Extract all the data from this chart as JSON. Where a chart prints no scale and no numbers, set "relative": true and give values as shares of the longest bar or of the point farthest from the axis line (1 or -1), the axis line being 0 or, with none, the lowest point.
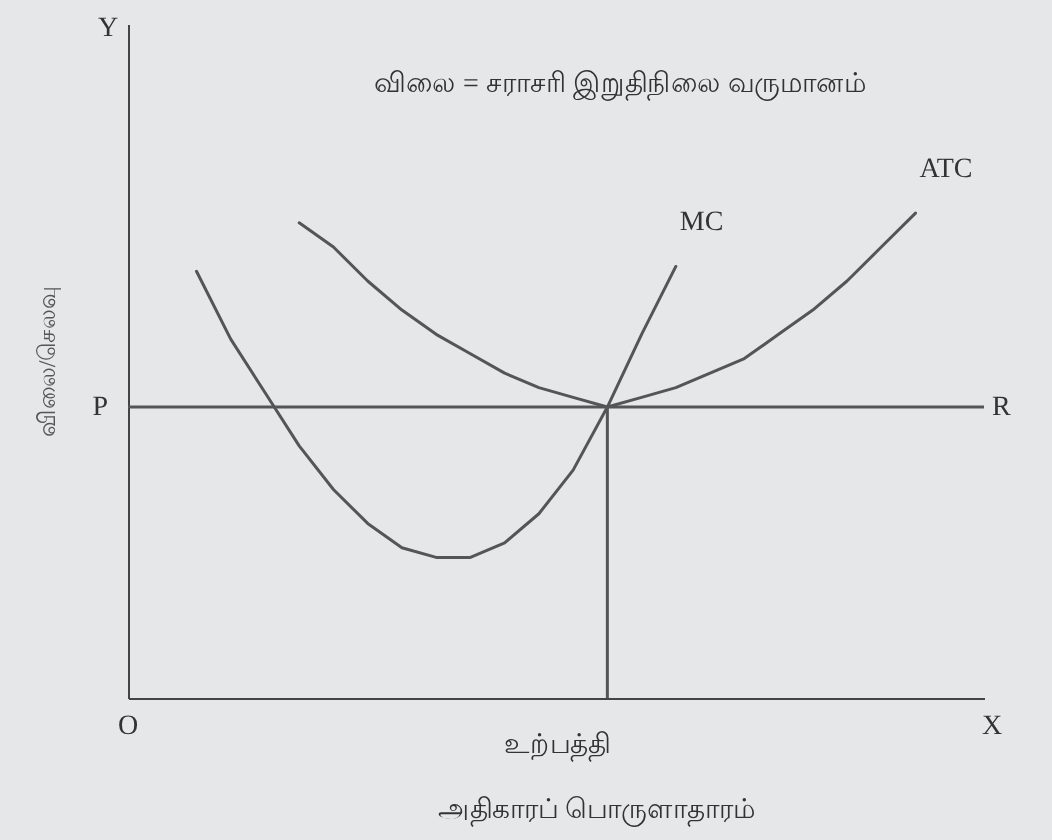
{
  "chart_data": {
    "type": "line",
    "title": "விலை = சராசரி இறுதிநிலை வருமானம்",
    "xlabel": "உற்பத்தி",
    "ylabel": "விலை/செலவு",
    "relative": true,
    "categories": [
      null,
      null,
      null,
      null,
      null,
      null,
      null,
      null,
      null,
      null,
      null,
      null,
      null,
      null,
      null,
      null,
      null,
      null,
      null,
      null,
      null,
      null,
      null,
      null,
      null,
      null
    ],
    "series": [
      {
        "name": "MC",
        "color": "#555555",
        "values": [
          null,
          null,
          0.88,
          0.74,
          0.63,
          0.52,
          0.43,
          0.36,
          0.31,
          0.29,
          0.29,
          0.32,
          0.38,
          0.47,
          0.6,
          0.75,
          0.89,
          null,
          null,
          null,
          null,
          null,
          null,
          null,
          null,
          null
        ]
      },
      {
        "name": "ATC",
        "color": "#555555",
        "values": [
          null,
          null,
          null,
          null,
          null,
          0.98,
          0.93,
          0.86,
          0.8,
          0.75,
          0.71,
          0.67,
          0.64,
          0.62,
          0.6,
          0.62,
          0.64,
          0.67,
          0.7,
          0.75,
          0.8,
          0.86,
          0.93,
          1,
          null,
          null
        ]
      }
    ],
    "ref_lines": [
      {
        "axis": "y",
        "value": 0.6,
        "label": "R",
        "color": "#555555"
      }
    ],
    "annotations": [
      "O",
      "X",
      "Y",
      "அதிகாரப் பொருளாதாரம்",
      "P"
    ],
    "grid": false,
    "line_style": "solid",
    "marker": "none"
  }
}
